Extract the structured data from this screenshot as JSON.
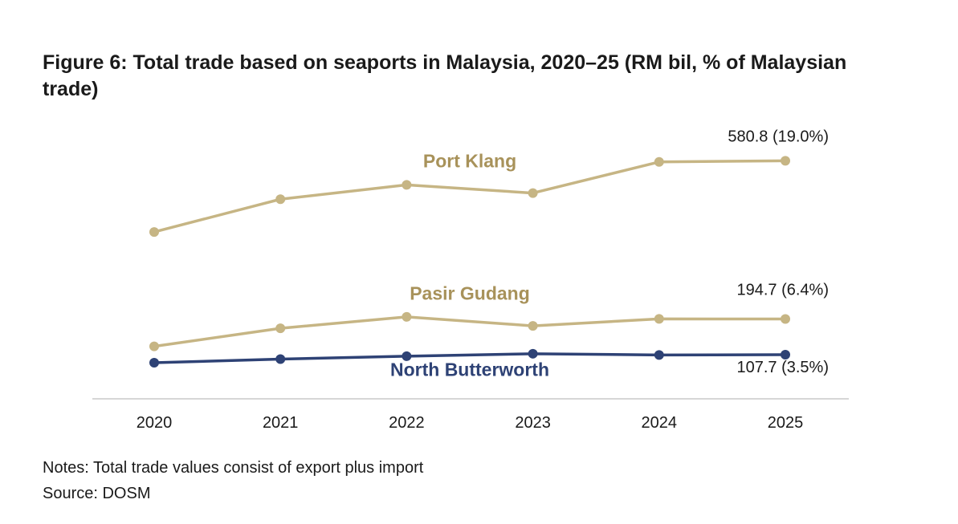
{
  "title": "Figure 6: Total trade based on seaports in Malaysia, 2020–25 (RM bil, % of Malaysian trade)",
  "notes": "Notes: Total trade values consist of export plus import",
  "source": "Source: DOSM",
  "chart_data": {
    "type": "line",
    "title": "Figure 6: Total trade based on seaports in Malaysia, 2020–25 (RM bil, % of Malaysian trade)",
    "xlabel": "",
    "ylabel": "RM bil",
    "x": [
      "2020",
      "2021",
      "2022",
      "2023",
      "2024",
      "2025"
    ],
    "ylim": [
      0,
      650
    ],
    "grid": false,
    "series": [
      {
        "name": "Port Klang",
        "color": "#c6b584",
        "label_color": "#a8925a",
        "values": [
          407,
          487,
          522,
          502,
          578,
          580.8
        ],
        "end_label": "580.8 (19.0%)"
      },
      {
        "name": "Pasir Gudang",
        "color": "#c6b584",
        "label_color": "#a8925a",
        "values": [
          128,
          172,
          200,
          178,
          195,
          194.7
        ],
        "end_label": "194.7 (6.4%)"
      },
      {
        "name": "North Butterworth",
        "color": "#2e4275",
        "label_color": "#2e4275",
        "values": [
          88,
          97,
          104,
          110,
          107,
          107.7
        ],
        "end_label": "107.7 (3.5%)"
      }
    ]
  }
}
